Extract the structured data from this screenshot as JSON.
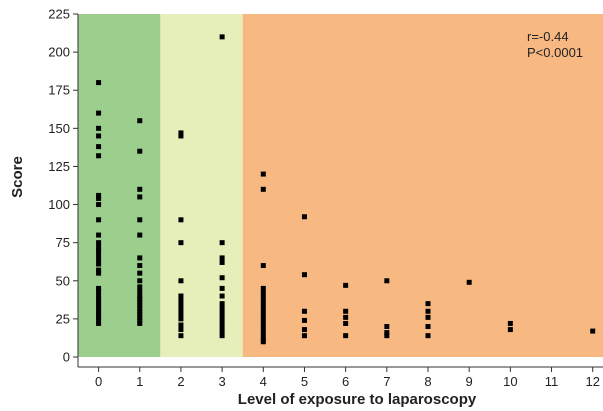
{
  "chart_data": {
    "type": "scatter",
    "xlabel": "Level of exposure to laparoscopy",
    "ylabel": "Score",
    "xlim": [
      -0.5,
      12.25
    ],
    "ylim": [
      0,
      225
    ],
    "x_ticks": [
      0,
      1,
      2,
      3,
      4,
      5,
      6,
      7,
      8,
      9,
      10,
      11,
      12
    ],
    "y_ticks": [
      0,
      25,
      50,
      75,
      100,
      125,
      150,
      175,
      200,
      225
    ],
    "annotations": [
      "r=-0.44",
      "P<0.0001"
    ],
    "background_bands": [
      {
        "x_from": -0.5,
        "x_to": 1.5,
        "color": "#9ccf8e"
      },
      {
        "x_from": 1.5,
        "x_to": 3.5,
        "color": "#e6efba"
      },
      {
        "x_from": 3.5,
        "x_to": 12.25,
        "color": "#f8b882"
      }
    ],
    "marker_color": "#000000",
    "points": [
      [
        0,
        180
      ],
      [
        0,
        160
      ],
      [
        0,
        150
      ],
      [
        0,
        145
      ],
      [
        0,
        138
      ],
      [
        0,
        132
      ],
      [
        0,
        106
      ],
      [
        0,
        104
      ],
      [
        0,
        100
      ],
      [
        0,
        90
      ],
      [
        0,
        80
      ],
      [
        0,
        75
      ],
      [
        0,
        72
      ],
      [
        0,
        70
      ],
      [
        0,
        67
      ],
      [
        0,
        64
      ],
      [
        0,
        61
      ],
      [
        0,
        57
      ],
      [
        0,
        55
      ],
      [
        0,
        45
      ],
      [
        0,
        43
      ],
      [
        0,
        40
      ],
      [
        0,
        38
      ],
      [
        0,
        36
      ],
      [
        0,
        34
      ],
      [
        0,
        32
      ],
      [
        0,
        30
      ],
      [
        0,
        28
      ],
      [
        0,
        26
      ],
      [
        0,
        24
      ],
      [
        0,
        22
      ],
      [
        1,
        155
      ],
      [
        1,
        135
      ],
      [
        1,
        110
      ],
      [
        1,
        105
      ],
      [
        1,
        90
      ],
      [
        1,
        80
      ],
      [
        1,
        65
      ],
      [
        1,
        60
      ],
      [
        1,
        55
      ],
      [
        1,
        50
      ],
      [
        1,
        46
      ],
      [
        1,
        43
      ],
      [
        1,
        40
      ],
      [
        1,
        38
      ],
      [
        1,
        36
      ],
      [
        1,
        34
      ],
      [
        1,
        32
      ],
      [
        1,
        30
      ],
      [
        1,
        28
      ],
      [
        1,
        26
      ],
      [
        1,
        24
      ],
      [
        1,
        22
      ],
      [
        2,
        147
      ],
      [
        2,
        145
      ],
      [
        2,
        90
      ],
      [
        2,
        75
      ],
      [
        2,
        50
      ],
      [
        2,
        40
      ],
      [
        2,
        37
      ],
      [
        2,
        34
      ],
      [
        2,
        31
      ],
      [
        2,
        28
      ],
      [
        2,
        25
      ],
      [
        2,
        21
      ],
      [
        2,
        18
      ],
      [
        2,
        14
      ],
      [
        3,
        210
      ],
      [
        3,
        75
      ],
      [
        3,
        65
      ],
      [
        3,
        62
      ],
      [
        3,
        52
      ],
      [
        3,
        45
      ],
      [
        3,
        40
      ],
      [
        3,
        35
      ],
      [
        3,
        32
      ],
      [
        3,
        29
      ],
      [
        3,
        26
      ],
      [
        3,
        23
      ],
      [
        3,
        20
      ],
      [
        3,
        17
      ],
      [
        3,
        14
      ],
      [
        4,
        120
      ],
      [
        4,
        110
      ],
      [
        4,
        60
      ],
      [
        4,
        45
      ],
      [
        4,
        42
      ],
      [
        4,
        39
      ],
      [
        4,
        36
      ],
      [
        4,
        33
      ],
      [
        4,
        30
      ],
      [
        4,
        27
      ],
      [
        4,
        24
      ],
      [
        4,
        21
      ],
      [
        4,
        18
      ],
      [
        4,
        15
      ],
      [
        4,
        12
      ],
      [
        4,
        10
      ],
      [
        5,
        92
      ],
      [
        5,
        54
      ],
      [
        5,
        30
      ],
      [
        5,
        24
      ],
      [
        5,
        18
      ],
      [
        5,
        14
      ],
      [
        6,
        47
      ],
      [
        6,
        30
      ],
      [
        6,
        26
      ],
      [
        6,
        22
      ],
      [
        6,
        14
      ],
      [
        7,
        50
      ],
      [
        7,
        20
      ],
      [
        7,
        16
      ],
      [
        7,
        14
      ],
      [
        8,
        35
      ],
      [
        8,
        30
      ],
      [
        8,
        26
      ],
      [
        8,
        20
      ],
      [
        8,
        14
      ],
      [
        9,
        49
      ],
      [
        10,
        22
      ],
      [
        10,
        18
      ],
      [
        12,
        17
      ]
    ]
  }
}
